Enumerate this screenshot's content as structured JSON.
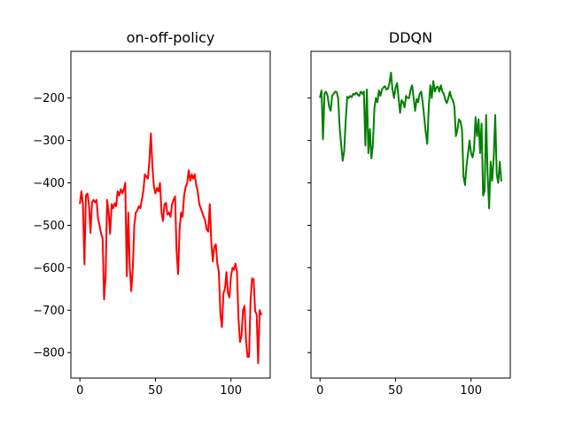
{
  "chart_data": [
    {
      "type": "line",
      "title": "on-off-policy",
      "xlabel": "",
      "ylabel": "",
      "xlim": [
        -6,
        126
      ],
      "ylim": [
        -860,
        -90
      ],
      "xticks": [
        0,
        50,
        100
      ],
      "xtick_labels": [
        "0",
        "50",
        "100"
      ],
      "yticks": [
        -200,
        -300,
        -400,
        -500,
        -600,
        -700,
        -800
      ],
      "ytick_labels": [
        "−200",
        "−300",
        "−400",
        "−500",
        "−600",
        "−700",
        "−800"
      ],
      "grid": false,
      "series": [
        {
          "color": "#ff0000",
          "x": [
            0,
            1,
            2,
            3,
            4,
            5,
            6,
            7,
            8,
            9,
            10,
            11,
            12,
            13,
            14,
            15,
            16,
            17,
            18,
            19,
            20,
            21,
            22,
            23,
            24,
            25,
            26,
            27,
            28,
            29,
            30,
            31,
            32,
            33,
            34,
            35,
            36,
            37,
            38,
            39,
            40,
            41,
            42,
            43,
            44,
            45,
            46,
            47,
            48,
            49,
            50,
            51,
            52,
            53,
            54,
            55,
            56,
            57,
            58,
            59,
            60,
            61,
            62,
            63,
            64,
            65,
            66,
            67,
            68,
            69,
            70,
            71,
            72,
            73,
            74,
            75,
            76,
            77,
            78,
            79,
            80,
            81,
            82,
            83,
            84,
            85,
            86,
            87,
            88,
            89,
            90,
            91,
            92,
            93,
            94,
            95,
            96,
            97,
            98,
            99,
            100,
            101,
            102,
            103,
            104,
            105,
            106,
            107,
            108,
            109,
            110,
            111,
            112,
            113,
            114,
            115,
            116,
            117,
            118,
            119,
            120
          ],
          "y": [
            -448,
            -420,
            -450,
            -592,
            -430,
            -425,
            -455,
            -518,
            -445,
            -440,
            -446,
            -440,
            -485,
            -500,
            -520,
            -530,
            -675,
            -620,
            -440,
            -470,
            -520,
            -450,
            -460,
            -448,
            -455,
            -420,
            -430,
            -415,
            -425,
            -415,
            -400,
            -620,
            -470,
            -600,
            -655,
            -600,
            -500,
            -470,
            -465,
            -455,
            -460,
            -440,
            -420,
            -380,
            -385,
            -390,
            -350,
            -283,
            -360,
            -410,
            -425,
            -412,
            -420,
            -400,
            -470,
            -490,
            -450,
            -447,
            -475,
            -470,
            -480,
            -450,
            -440,
            -432,
            -560,
            -615,
            -510,
            -470,
            -480,
            -430,
            -410,
            -400,
            -370,
            -395,
            -380,
            -390,
            -380,
            -405,
            -420,
            -450,
            -460,
            -470,
            -480,
            -490,
            -510,
            -515,
            -450,
            -540,
            -585,
            -550,
            -545,
            -590,
            -610,
            -710,
            -740,
            -660,
            -650,
            -610,
            -660,
            -670,
            -620,
            -600,
            -605,
            -590,
            -610,
            -720,
            -775,
            -760,
            -700,
            -690,
            -770,
            -810,
            -810,
            -680,
            -625,
            -628,
            -702,
            -710,
            -825,
            -700,
            -710
          ]
        }
      ]
    },
    {
      "type": "line",
      "title": "DDQN",
      "xlabel": "",
      "ylabel": "",
      "xlim": [
        -6,
        126
      ],
      "ylim": [
        -860,
        -90
      ],
      "xticks": [
        0,
        50,
        100
      ],
      "xtick_labels": [
        "0",
        "50",
        "100"
      ],
      "yticks": [
        -200,
        -300,
        -400,
        -500,
        -600,
        -700,
        -800
      ],
      "ytick_labels": [],
      "grid": false,
      "series": [
        {
          "color": "#008000",
          "x": [
            0,
            1,
            2,
            3,
            4,
            5,
            6,
            7,
            8,
            9,
            10,
            11,
            12,
            13,
            14,
            15,
            16,
            17,
            18,
            19,
            20,
            21,
            22,
            23,
            24,
            25,
            26,
            27,
            28,
            29,
            30,
            31,
            32,
            33,
            34,
            35,
            36,
            37,
            38,
            39,
            40,
            41,
            42,
            43,
            44,
            45,
            46,
            47,
            48,
            49,
            50,
            51,
            52,
            53,
            54,
            55,
            56,
            57,
            58,
            59,
            60,
            61,
            62,
            63,
            64,
            65,
            66,
            67,
            68,
            69,
            70,
            71,
            72,
            73,
            74,
            75,
            76,
            77,
            78,
            79,
            80,
            81,
            82,
            83,
            84,
            85,
            86,
            87,
            88,
            89,
            90,
            91,
            92,
            93,
            94,
            95,
            96,
            97,
            98,
            99,
            100,
            101,
            102,
            103,
            104,
            105,
            106,
            107,
            108,
            109,
            110,
            111,
            112,
            113,
            114,
            115,
            116,
            117,
            118,
            119,
            120
          ],
          "y": [
            -198,
            -182,
            -297,
            -190,
            -185,
            -195,
            -220,
            -230,
            -195,
            -190,
            -185,
            -186,
            -200,
            -270,
            -310,
            -348,
            -325,
            -255,
            -197,
            -200,
            -195,
            -198,
            -190,
            -192,
            -187,
            -192,
            -195,
            -185,
            -190,
            -185,
            -312,
            -180,
            -330,
            -273,
            -342,
            -310,
            -225,
            -200,
            -210,
            -182,
            -195,
            -180,
            -175,
            -172,
            -180,
            -178,
            -165,
            -140,
            -180,
            -200,
            -175,
            -165,
            -200,
            -235,
            -205,
            -210,
            -222,
            -195,
            -200,
            -200,
            -180,
            -170,
            -200,
            -230,
            -202,
            -210,
            -190,
            -185,
            -210,
            -245,
            -280,
            -308,
            -220,
            -170,
            -200,
            -160,
            -185,
            -175,
            -173,
            -185,
            -170,
            -185,
            -190,
            -205,
            -212,
            -200,
            -185,
            -200,
            -205,
            -220,
            -290,
            -275,
            -250,
            -255,
            -275,
            -385,
            -405,
            -360,
            -330,
            -300,
            -330,
            -340,
            -320,
            -245,
            -290,
            -250,
            -330,
            -260,
            -430,
            -420,
            -240,
            -380,
            -460,
            -350,
            -395,
            -340,
            -240,
            -380,
            -400,
            -350,
            -395
          ]
        }
      ]
    }
  ]
}
